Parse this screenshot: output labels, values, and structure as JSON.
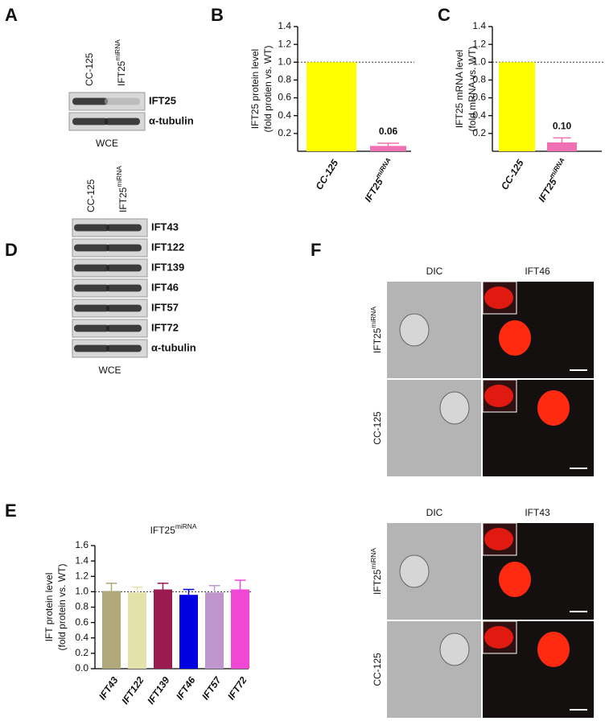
{
  "panel_labels": [
    "A",
    "B",
    "C",
    "D",
    "E",
    "F"
  ],
  "blot_a": {
    "lanes": [
      "CC-125",
      "IFT25miRNA"
    ],
    "bands": [
      "IFT25",
      "α-tubulin"
    ],
    "footer": "WCE"
  },
  "blot_d": {
    "lanes": [
      "CC-125",
      "IFT25miRNA"
    ],
    "bands": [
      "IFT43",
      "IFT122",
      "IFT139",
      "IFT46",
      "IFT57",
      "IFT72",
      "α-tubulin"
    ],
    "footer": "WCE"
  },
  "images": {
    "top_columns": [
      "DIC",
      "IFT46"
    ],
    "bottom_columns": [
      "DIC",
      "IFT43"
    ],
    "rows": [
      "IFT25miRNA",
      "CC-125"
    ]
  },
  "chart_data": [
    {
      "type": "bar",
      "ylabel": [
        "IFT25 protein level",
        "(fold protien vs. WT)"
      ],
      "categories": [
        "CC-125",
        "IFT25miRNA"
      ],
      "values": [
        1.0,
        0.06
      ],
      "errors": [
        null,
        0.03
      ],
      "value_labels": [
        null,
        "0.06"
      ],
      "colors": [
        "#ffff00",
        "#f070b4"
      ],
      "ylim": [
        0,
        1.4
      ],
      "yticks": [
        0.2,
        0.4,
        0.6,
        0.8,
        {
          "value": 1,
          "label": "1.0"
        },
        1.2,
        1.4
      ],
      "reference_line": 1
    },
    {
      "type": "bar",
      "ylabel": [
        "IFT25 mRNA level",
        "(fold mRNA vs. WT)"
      ],
      "categories": [
        "CC-125",
        "IFT25miRNA"
      ],
      "values": [
        1.0,
        0.1
      ],
      "errors": [
        null,
        0.05
      ],
      "value_labels": [
        null,
        "0.10"
      ],
      "colors": [
        "#ffff00",
        "#f070b4"
      ],
      "ylim": [
        0,
        1.4
      ],
      "yticks": [
        0.2,
        0.4,
        0.6,
        0.8,
        {
          "value": 1,
          "label": "1.0"
        },
        1.2,
        1.4
      ],
      "reference_line": 1
    },
    {
      "type": "bar",
      "title": "IFT25miRNA",
      "ylabel": [
        "IFT protein level",
        "(fold protein vs. WT)"
      ],
      "categories": [
        "IFT43",
        "IFT122",
        "IFT139",
        "IFT46",
        "IFT57",
        "IFT72"
      ],
      "values": [
        1.01,
        0.99,
        1.03,
        0.96,
        0.99,
        1.03
      ],
      "errors": [
        0.1,
        0.07,
        0.08,
        0.07,
        0.09,
        0.12
      ],
      "colors": [
        "#b0a878",
        "#e2e2aa",
        "#9b1b50",
        "#0000e0",
        "#c094cc",
        "#f048d4"
      ],
      "ylim": [
        0,
        1.6
      ],
      "yticks": [
        {
          "value": 0,
          "label": "0.0"
        },
        0.2,
        0.4,
        0.6,
        0.8,
        {
          "value": 1,
          "label": "1.0"
        },
        1.2,
        1.4,
        1.6
      ],
      "reference_line": 1
    }
  ]
}
